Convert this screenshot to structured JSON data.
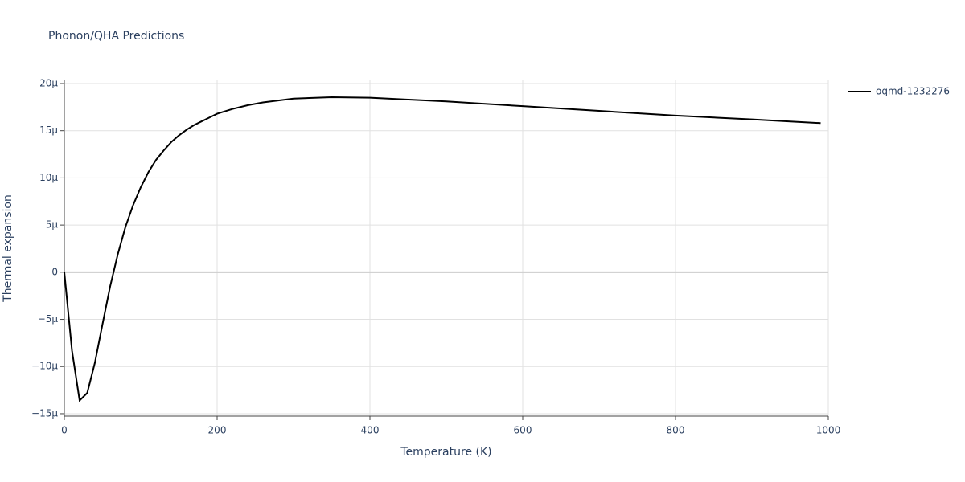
{
  "chart_data": {
    "type": "line",
    "title": "Phonon/QHA Predictions",
    "x_label": "Temperature (K)",
    "y_label": "Thermal expansion",
    "xlim": [
      0,
      1000
    ],
    "xticks": [
      0,
      200,
      400,
      600,
      800,
      1000
    ],
    "ylim": [
      -15.26,
      20.34
    ],
    "yticks": [
      {
        "value": -15,
        "label": "−15μ"
      },
      {
        "value": -10,
        "label": "−10μ"
      },
      {
        "value": -5,
        "label": "−5μ"
      },
      {
        "value": 0,
        "label": "0"
      },
      {
        "value": 5,
        "label": "5μ"
      },
      {
        "value": 10,
        "label": "10μ"
      },
      {
        "value": 15,
        "label": "15μ"
      },
      {
        "value": 20,
        "label": "20μ"
      }
    ],
    "grid": true,
    "legend": "right",
    "x": [
      0,
      10,
      20,
      30,
      40,
      50,
      60,
      70,
      80,
      90,
      100,
      110,
      120,
      130,
      140,
      150,
      160,
      170,
      180,
      190,
      200,
      220,
      240,
      260,
      280,
      300,
      350,
      400,
      450,
      500,
      600,
      700,
      800,
      900,
      990
    ],
    "series": [
      {
        "name": "oqmd-1232276",
        "color": "#000000",
        "values": [
          0,
          -8.3,
          -13.6,
          -12.8,
          -9.6,
          -5.5,
          -1.5,
          1.9,
          4.8,
          7.1,
          9.0,
          10.6,
          11.9,
          12.9,
          13.8,
          14.5,
          15.1,
          15.6,
          16.0,
          16.4,
          16.8,
          17.3,
          17.7,
          18.0,
          18.2,
          18.4,
          18.55,
          18.5,
          18.3,
          18.1,
          17.6,
          17.1,
          16.6,
          16.2,
          15.8
        ]
      }
    ]
  }
}
